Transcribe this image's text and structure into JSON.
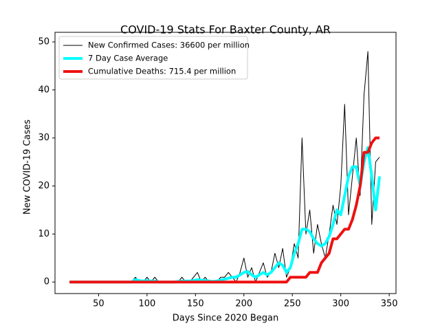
{
  "chart_data": {
    "type": "line",
    "title": "COVID-19 Stats For Baxter County, AR",
    "x_label": "Days Since 2020 Began",
    "y_label": "New COVID-19 Cases",
    "x": [
      20,
      24,
      28,
      32,
      36,
      40,
      44,
      48,
      52,
      56,
      60,
      64,
      68,
      72,
      76,
      80,
      84,
      88,
      92,
      96,
      100,
      104,
      108,
      112,
      116,
      120,
      124,
      128,
      132,
      136,
      140,
      144,
      148,
      152,
      156,
      160,
      164,
      168,
      172,
      176,
      180,
      184,
      188,
      192,
      196,
      200,
      204,
      208,
      212,
      216,
      220,
      224,
      228,
      232,
      236,
      240,
      244,
      248,
      252,
      256,
      260,
      264,
      268,
      272,
      276,
      280,
      284,
      288,
      292,
      296,
      300,
      304,
      308,
      312,
      316,
      320,
      324,
      328,
      332,
      336,
      340
    ],
    "series": [
      {
        "name": "New Confirmed Cases: 36600 per million",
        "color": "#000000",
        "width": 1,
        "values": [
          0,
          0,
          0,
          0,
          0,
          0,
          0,
          0,
          0,
          0,
          0,
          0,
          0,
          0,
          0,
          0,
          0,
          1,
          0,
          0,
          1,
          0,
          1,
          0,
          0,
          0,
          0,
          0,
          0,
          1,
          0,
          0,
          1,
          2,
          0,
          1,
          0,
          0,
          0,
          1,
          1,
          2,
          1,
          0,
          2,
          5,
          1,
          3,
          0,
          2,
          4,
          1,
          2,
          6,
          3,
          7,
          1,
          3,
          8,
          5,
          30,
          10,
          15,
          6,
          12,
          8,
          5,
          10,
          16,
          12,
          20,
          37,
          14,
          22,
          30,
          18,
          39,
          48,
          12,
          25,
          26
        ]
      },
      {
        "name": "7 Day Case Average",
        "color": "#00ffff",
        "width": 4,
        "values": [
          0,
          0,
          0,
          0,
          0,
          0,
          0,
          0,
          0,
          0,
          0,
          0,
          0,
          0,
          0,
          0,
          0,
          0.5,
          0.3,
          0.2,
          0.3,
          0.2,
          0.2,
          0,
          0,
          0,
          0,
          0,
          0.1,
          0.2,
          0.2,
          0.2,
          0.3,
          0.5,
          0.4,
          0.3,
          0.2,
          0.1,
          0.2,
          0.4,
          0.6,
          0.8,
          1,
          1,
          1.5,
          2,
          2.2,
          1.5,
          1,
          1.5,
          2,
          1.5,
          2,
          3,
          4,
          3.5,
          2,
          3,
          6,
          8,
          11,
          11,
          10.5,
          9,
          8,
          7.5,
          8,
          9.5,
          12,
          15,
          14,
          18,
          22,
          24,
          24,
          20,
          25,
          28,
          22,
          15,
          22
        ]
      },
      {
        "name": "Cumulative Deaths: 715.4 per million",
        "color": "#ee1111",
        "width": 4,
        "values": [
          0,
          0,
          0,
          0,
          0,
          0,
          0,
          0,
          0,
          0,
          0,
          0,
          0,
          0,
          0,
          0,
          0,
          0,
          0,
          0,
          0,
          0,
          0,
          0,
          0,
          0,
          0,
          0,
          0,
          0,
          0,
          0,
          0,
          0,
          0,
          0,
          0,
          0,
          0,
          0,
          0,
          0,
          0,
          0,
          0,
          0,
          0,
          0,
          0,
          0,
          0,
          0,
          0,
          0,
          0,
          0,
          0,
          1,
          1,
          1,
          1,
          1,
          2,
          2,
          2,
          4,
          5,
          6,
          9,
          9,
          10,
          11,
          11,
          13,
          16,
          20,
          27,
          27,
          29,
          30,
          30
        ]
      }
    ],
    "xlim": [
      5,
      357
    ],
    "ylim": [
      -2.4,
      52
    ],
    "xticks": [
      50,
      100,
      150,
      200,
      250,
      300,
      350
    ],
    "yticks": [
      0,
      10,
      20,
      30,
      40,
      50
    ],
    "legend": "upper left"
  }
}
